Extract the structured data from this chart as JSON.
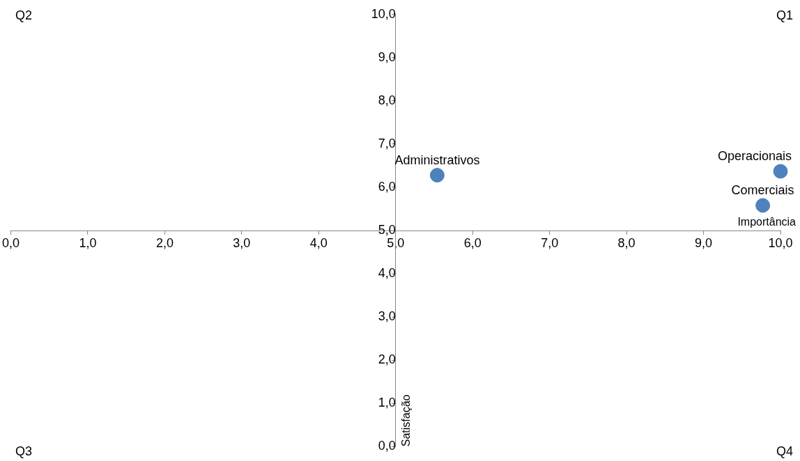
{
  "chart_data": {
    "type": "scatter",
    "xlabel": "Importância",
    "ylabel": "Satisfação",
    "x": [
      5.54,
      10.0,
      9.77
    ],
    "values": [
      6.28,
      6.37,
      5.58
    ],
    "color": "#4f81bd",
    "marker": "circle",
    "grid": false,
    "legend": false,
    "xlim": [
      0,
      10
    ],
    "ylim": [
      0,
      10
    ],
    "xticks": [
      {
        "value": 0,
        "label": "0,0"
      },
      {
        "value": 1,
        "label": "1,0"
      },
      {
        "value": 2,
        "label": "2,0"
      },
      {
        "value": 3,
        "label": "3,0"
      },
      {
        "value": 4,
        "label": "4,0"
      },
      {
        "value": 5,
        "label": "5,0"
      },
      {
        "value": 6,
        "label": "6,0"
      },
      {
        "value": 7,
        "label": "7,0"
      },
      {
        "value": 8,
        "label": "8,0"
      },
      {
        "value": 9,
        "label": "9,0"
      },
      {
        "value": 10,
        "label": "10,0"
      }
    ],
    "yticks": [
      {
        "value": 0,
        "label": "0,0"
      },
      {
        "value": 1,
        "label": "1,0"
      },
      {
        "value": 2,
        "label": "2,0"
      },
      {
        "value": 3,
        "label": "3,0"
      },
      {
        "value": 4,
        "label": "4,0"
      },
      {
        "value": 5,
        "label": "5,0"
      },
      {
        "value": 6,
        "label": "6,0"
      },
      {
        "value": 7,
        "label": "7,0"
      },
      {
        "value": 8,
        "label": "8,0"
      },
      {
        "value": 9,
        "label": "9,0"
      },
      {
        "value": 10,
        "label": "10,0"
      }
    ],
    "annotations": [
      "Q2",
      "Q1",
      "Q3",
      "Q4",
      {
        "text": "Administrativos",
        "x": 5.54,
        "y": 6.28
      },
      {
        "text": "Operacionais",
        "x": 10.0,
        "y": 6.37
      },
      {
        "text": "Comerciais",
        "x": 9.77,
        "y": 5.58
      }
    ]
  }
}
